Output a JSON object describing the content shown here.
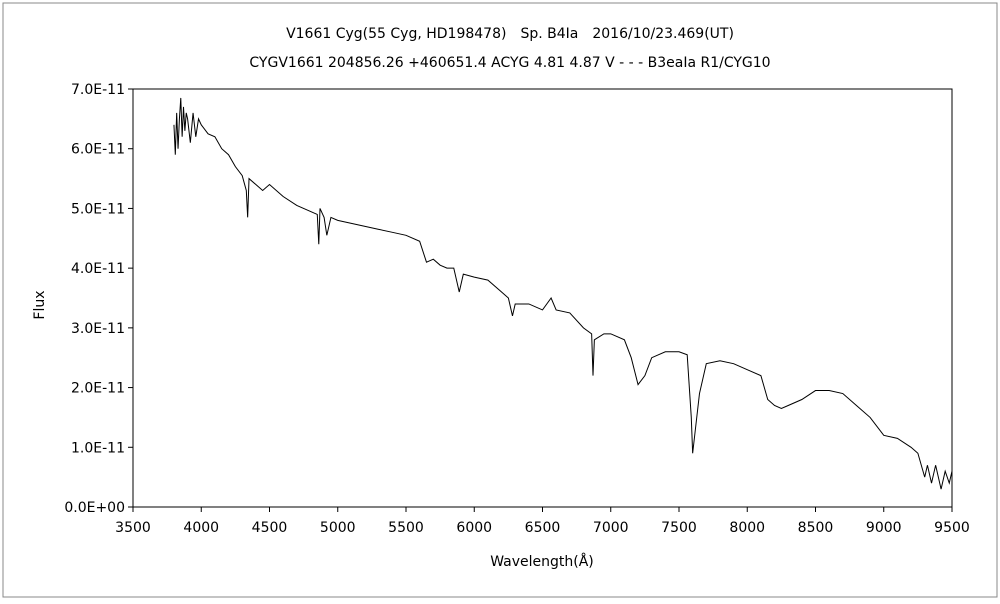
{
  "chart_data": {
    "type": "line",
    "title": "V1661 Cyg(55 Cyg, HD198478)　Sp. B4Ia　2016/10/23.469(UT)",
    "subtitle": "CYGV1661 204856.26 +460651.4 ACYG 4.81 4.87 V - - - B3eaIa R1/CYG10",
    "x_label": "Wavelength(Å)",
    "y_label": "Flux",
    "xlim": [
      3500,
      9500
    ],
    "xticks": [
      3500,
      4000,
      4500,
      5000,
      5500,
      6000,
      6500,
      7000,
      7500,
      8000,
      8500,
      9000,
      9500
    ],
    "ylim": [
      0,
      7e-11
    ],
    "yticks": [
      {
        "value": 0,
        "label": "0.0E+00"
      },
      {
        "value": 1e-11,
        "label": "1.0E-11"
      },
      {
        "value": 2e-11,
        "label": "2.0E-11"
      },
      {
        "value": 3e-11,
        "label": "3.0E-11"
      },
      {
        "value": 4e-11,
        "label": "4.0E-11"
      },
      {
        "value": 5e-11,
        "label": "5.0E-11"
      },
      {
        "value": 6e-11,
        "label": "6.0E-11"
      },
      {
        "value": 7e-11,
        "label": "7.0E-11"
      }
    ],
    "grid": false,
    "series": [
      {
        "color": "#000000",
        "x": [
          3800,
          3810,
          3820,
          3830,
          3840,
          3850,
          3860,
          3870,
          3880,
          3890,
          3900,
          3920,
          3940,
          3960,
          3980,
          4000,
          4050,
          4100,
          4150,
          4200,
          4250,
          4300,
          4330,
          4340,
          4350,
          4400,
          4450,
          4500,
          4600,
          4700,
          4800,
          4850,
          4861,
          4870,
          4900,
          4920,
          4950,
          5000,
          5100,
          5200,
          5300,
          5400,
          5500,
          5600,
          5650,
          5700,
          5750,
          5800,
          5850,
          5890,
          5920,
          6000,
          6100,
          6200,
          6250,
          6280,
          6300,
          6400,
          6500,
          6563,
          6600,
          6700,
          6800,
          6860,
          6870,
          6880,
          6950,
          7000,
          7100,
          7150,
          7200,
          7250,
          7300,
          7400,
          7500,
          7560,
          7590,
          7600,
          7620,
          7650,
          7700,
          7800,
          7900,
          8000,
          8100,
          8150,
          8200,
          8250,
          8300,
          8400,
          8500,
          8600,
          8700,
          8800,
          8900,
          9000,
          9100,
          9200,
          9250,
          9300,
          9320,
          9350,
          9380,
          9400,
          9420,
          9450,
          9480,
          9500
        ],
        "values": [
          6.4e-11,
          5.9e-11,
          6.6e-11,
          6e-11,
          6.5e-11,
          6.85e-11,
          6.2e-11,
          6.7e-11,
          6.3e-11,
          6.6e-11,
          6.5e-11,
          6.1e-11,
          6.6e-11,
          6.2e-11,
          6.5e-11,
          6.4e-11,
          6.25e-11,
          6.2e-11,
          6e-11,
          5.9e-11,
          5.7e-11,
          5.55e-11,
          5.3e-11,
          4.85e-11,
          5.5e-11,
          5.4e-11,
          5.3e-11,
          5.4e-11,
          5.2e-11,
          5.05e-11,
          4.95e-11,
          4.9e-11,
          4.4e-11,
          5e-11,
          4.85e-11,
          4.55e-11,
          4.85e-11,
          4.8e-11,
          4.75e-11,
          4.7e-11,
          4.65e-11,
          4.6e-11,
          4.55e-11,
          4.45e-11,
          4.1e-11,
          4.15e-11,
          4.05e-11,
          4e-11,
          4e-11,
          3.6e-11,
          3.9e-11,
          3.85e-11,
          3.8e-11,
          3.6e-11,
          3.5e-11,
          3.2e-11,
          3.4e-11,
          3.4e-11,
          3.3e-11,
          3.5e-11,
          3.3e-11,
          3.25e-11,
          3e-11,
          2.9e-11,
          2.2e-11,
          2.8e-11,
          2.9e-11,
          2.9e-11,
          2.8e-11,
          2.5e-11,
          2.05e-11,
          2.2e-11,
          2.5e-11,
          2.6e-11,
          2.6e-11,
          2.55e-11,
          1.5e-11,
          9e-12,
          1.3e-11,
          1.9e-11,
          2.4e-11,
          2.45e-11,
          2.4e-11,
          2.3e-11,
          2.2e-11,
          1.8e-11,
          1.7e-11,
          1.65e-11,
          1.7e-11,
          1.8e-11,
          1.95e-11,
          1.95e-11,
          1.9e-11,
          1.7e-11,
          1.5e-11,
          1.2e-11,
          1.15e-11,
          1e-11,
          9e-12,
          5e-12,
          7e-12,
          4e-12,
          7e-12,
          5e-12,
          3e-12,
          6e-12,
          4e-12,
          6e-12
        ]
      }
    ]
  }
}
